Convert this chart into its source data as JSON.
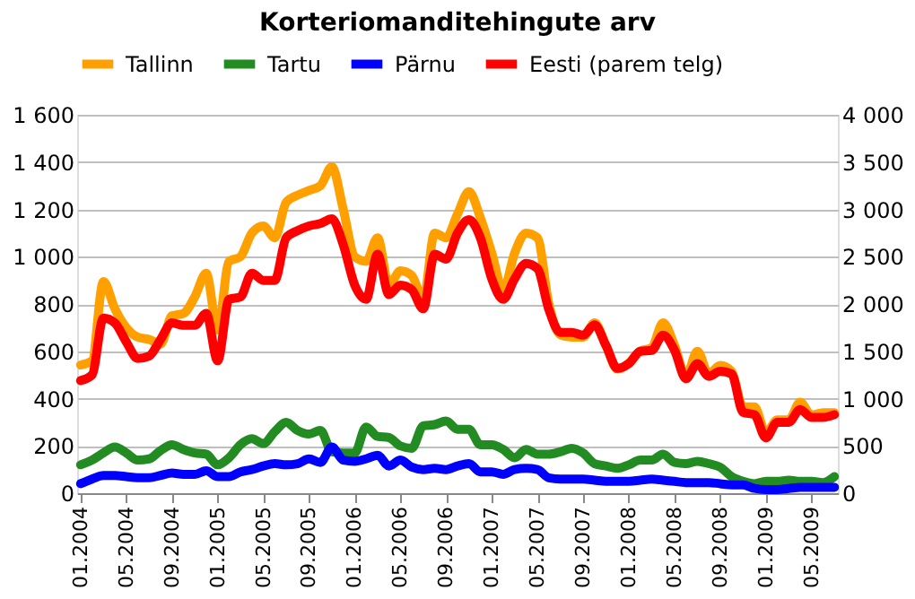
{
  "chart_data": {
    "type": "line",
    "title": "Korteriomanditehingute arv",
    "categories": [
      "01.2004",
      null,
      null,
      null,
      "05.2004",
      null,
      null,
      null,
      "09.2004",
      null,
      null,
      null,
      "01.2005",
      null,
      null,
      null,
      "05.2005",
      null,
      null,
      null,
      "09.2005",
      null,
      null,
      null,
      "01.2006",
      null,
      null,
      null,
      "05.2006",
      null,
      null,
      null,
      "09.2006",
      null,
      null,
      null,
      "01.2007",
      null,
      null,
      null,
      "05.2007",
      null,
      null,
      null,
      "09.2007",
      null,
      null,
      null,
      "01.2008",
      null,
      null,
      null,
      "05.2008",
      null,
      null,
      null,
      "09.2008",
      null,
      null,
      null,
      "01.2009",
      null,
      null,
      null,
      "05.2009",
      null,
      null
    ],
    "series": [
      {
        "name": "Tallinn",
        "color": "#ffa000",
        "values": [
          542,
          560,
          895,
          780,
          700,
          660,
          650,
          630,
          750,
          760,
          830,
          930,
          690,
          980,
          1000,
          1100,
          1130,
          1080,
          1230,
          1260,
          1280,
          1300,
          1380,
          1200,
          1000,
          980,
          1080,
          880,
          940,
          920,
          820,
          1100,
          1080,
          1180,
          1275,
          1165,
          1015,
          860,
          1015,
          1100,
          1080,
          800,
          670,
          660,
          660,
          720,
          625,
          525,
          550,
          600,
          615,
          720,
          625,
          495,
          600,
          505,
          540,
          515,
          365,
          365,
          255,
          310,
          310,
          385,
          330,
          340,
          340
        ]
      },
      {
        "name": "Tartu",
        "color": "#228b22",
        "values": [
          120,
          140,
          170,
          195,
          170,
          140,
          145,
          180,
          205,
          185,
          170,
          165,
          120,
          150,
          205,
          230,
          210,
          260,
          300,
          265,
          250,
          265,
          175,
          170,
          170,
          280,
          240,
          235,
          200,
          190,
          285,
          290,
          305,
          270,
          270,
          205,
          205,
          185,
          150,
          185,
          165,
          165,
          175,
          190,
          170,
          125,
          115,
          105,
          120,
          140,
          140,
          165,
          130,
          125,
          135,
          125,
          110,
          70,
          50,
          40,
          50,
          50,
          55,
          50,
          50,
          45,
          70
        ]
      },
      {
        "name": "Pärnu",
        "color": "#0000ff",
        "values": [
          40,
          60,
          75,
          75,
          70,
          65,
          65,
          75,
          85,
          80,
          80,
          95,
          70,
          70,
          90,
          100,
          115,
          125,
          120,
          125,
          145,
          130,
          195,
          140,
          135,
          145,
          160,
          115,
          140,
          110,
          100,
          105,
          100,
          115,
          125,
          90,
          90,
          80,
          100,
          105,
          100,
          65,
          60,
          60,
          60,
          55,
          50,
          50,
          50,
          55,
          60,
          55,
          50,
          45,
          45,
          45,
          40,
          35,
          35,
          20,
          15,
          15,
          20,
          25,
          25,
          25,
          25
        ]
      },
      {
        "name": "Eesti (parem telg)",
        "color": "#ff0000",
        "axis": "y2",
        "values": [
          1190,
          1250,
          1850,
          1800,
          1600,
          1425,
          1450,
          1625,
          1800,
          1775,
          1775,
          1900,
          1400,
          2050,
          2075,
          2325,
          2250,
          2250,
          2700,
          2775,
          2825,
          2850,
          2900,
          2625,
          2200,
          2050,
          2525,
          2100,
          2200,
          2150,
          1950,
          2525,
          2475,
          2750,
          2890,
          2700,
          2265,
          2050,
          2265,
          2430,
          2375,
          1940,
          1700,
          1700,
          1670,
          1780,
          1560,
          1320,
          1370,
          1500,
          1510,
          1670,
          1510,
          1210,
          1370,
          1235,
          1290,
          1260,
          855,
          830,
          585,
          750,
          750,
          885,
          800,
          800,
          830
        ]
      }
    ],
    "ylim": [
      0,
      1600
    ],
    "yticks": [
      0,
      200,
      400,
      600,
      800,
      {
        "value": 1000,
        "label": "1 000"
      },
      {
        "value": 1200,
        "label": "1 200"
      },
      {
        "value": 1400,
        "label": "1 400"
      },
      {
        "value": 1600,
        "label": "1 600"
      }
    ],
    "y2lim": [
      0,
      4000
    ],
    "y2ticks": [
      0,
      500,
      {
        "value": 1000,
        "label": "1 000"
      },
      {
        "value": 1500,
        "label": "1 500"
      },
      {
        "value": 2000,
        "label": "2 000"
      },
      {
        "value": 2500,
        "label": "2 500"
      },
      {
        "value": 3000,
        "label": "3 000"
      },
      {
        "value": 3500,
        "label": "3 500"
      },
      {
        "value": 4000,
        "label": "4 000"
      }
    ],
    "grid": "y",
    "legend": "top",
    "marker": "none",
    "line_style": "solid"
  }
}
